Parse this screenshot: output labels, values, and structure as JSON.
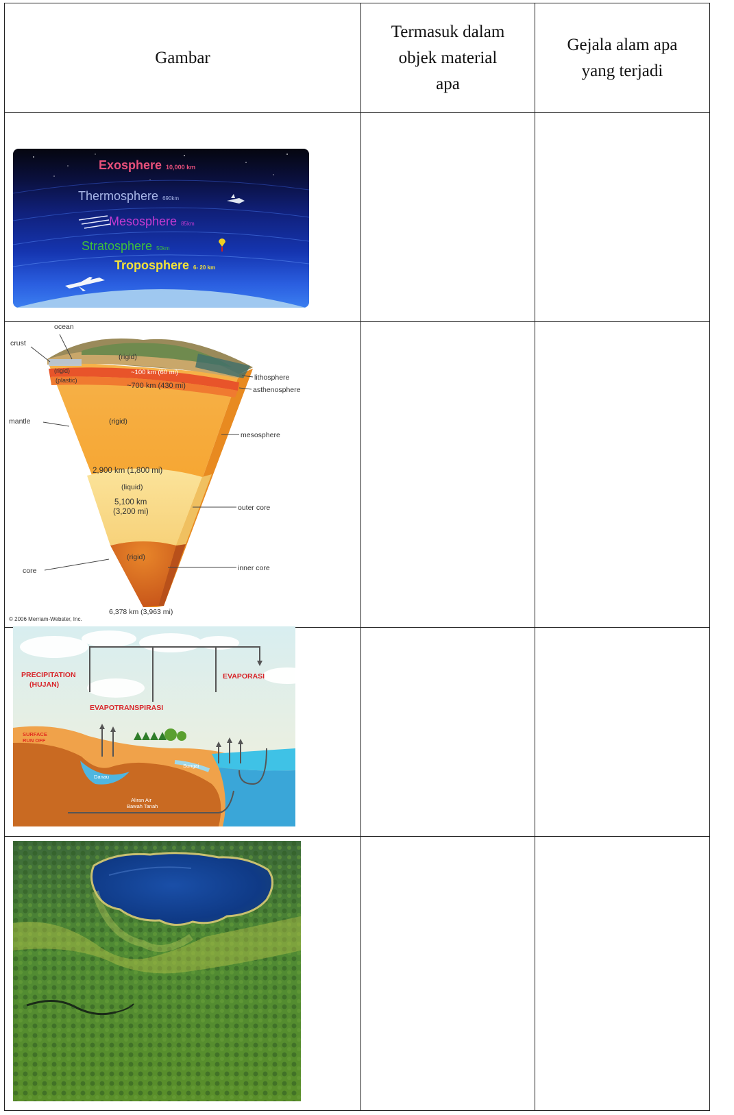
{
  "table": {
    "headers": [
      "Gambar",
      "Termasuk dalam objek material apa",
      "Gejala alam apa yang terjadi"
    ],
    "header_lines": {
      "col2": [
        "Termasuk dalam",
        "objek material",
        "apa"
      ],
      "col3": [
        "Gejala alam apa",
        "yang terjadi"
      ]
    }
  },
  "atmosphere": {
    "layers": [
      {
        "name": "Exosphere",
        "alt": "10,000 km",
        "color": "#e8507a"
      },
      {
        "name": "Thermosphere",
        "alt": "690km",
        "color": "#a9b7e8"
      },
      {
        "name": "Mesosphere",
        "alt": "85km",
        "color": "#c23ad0"
      },
      {
        "name": "Stratosphere",
        "alt": "50km",
        "color": "#3fbf3a"
      },
      {
        "name": "Troposphere",
        "alt": "6- 20 km",
        "color": "#f2e23a"
      }
    ]
  },
  "earth": {
    "left_labels": [
      "ocean",
      "crust",
      "mantle",
      "core"
    ],
    "right_labels": [
      "lithosphere",
      "asthenosphere",
      "mesosphere",
      "outer core",
      "inner core"
    ],
    "inner_labels": [
      "(rigid)",
      "(rigid)",
      "(plastic)",
      "~100 km (60 mi)",
      "~700 km (430 mi)",
      "(rigid)",
      "2,900 km (1,800 mi)",
      "(liquid)",
      "5,100 km",
      "(3,200 mi)",
      "(rigid)"
    ],
    "bottom": "6,378 km (3,963 mi)",
    "credit": "© 2006 Merriam-Webster, Inc."
  },
  "water_cycle": {
    "labels": [
      "PRECIPITATION",
      "(HUJAN)",
      "EVAPORASI",
      "EVAPOTRANSPIRASI",
      "SURFACE",
      "RUN OFF",
      "Danau",
      "Sungai",
      "Aliran Air",
      "Bawah Tanah"
    ]
  }
}
